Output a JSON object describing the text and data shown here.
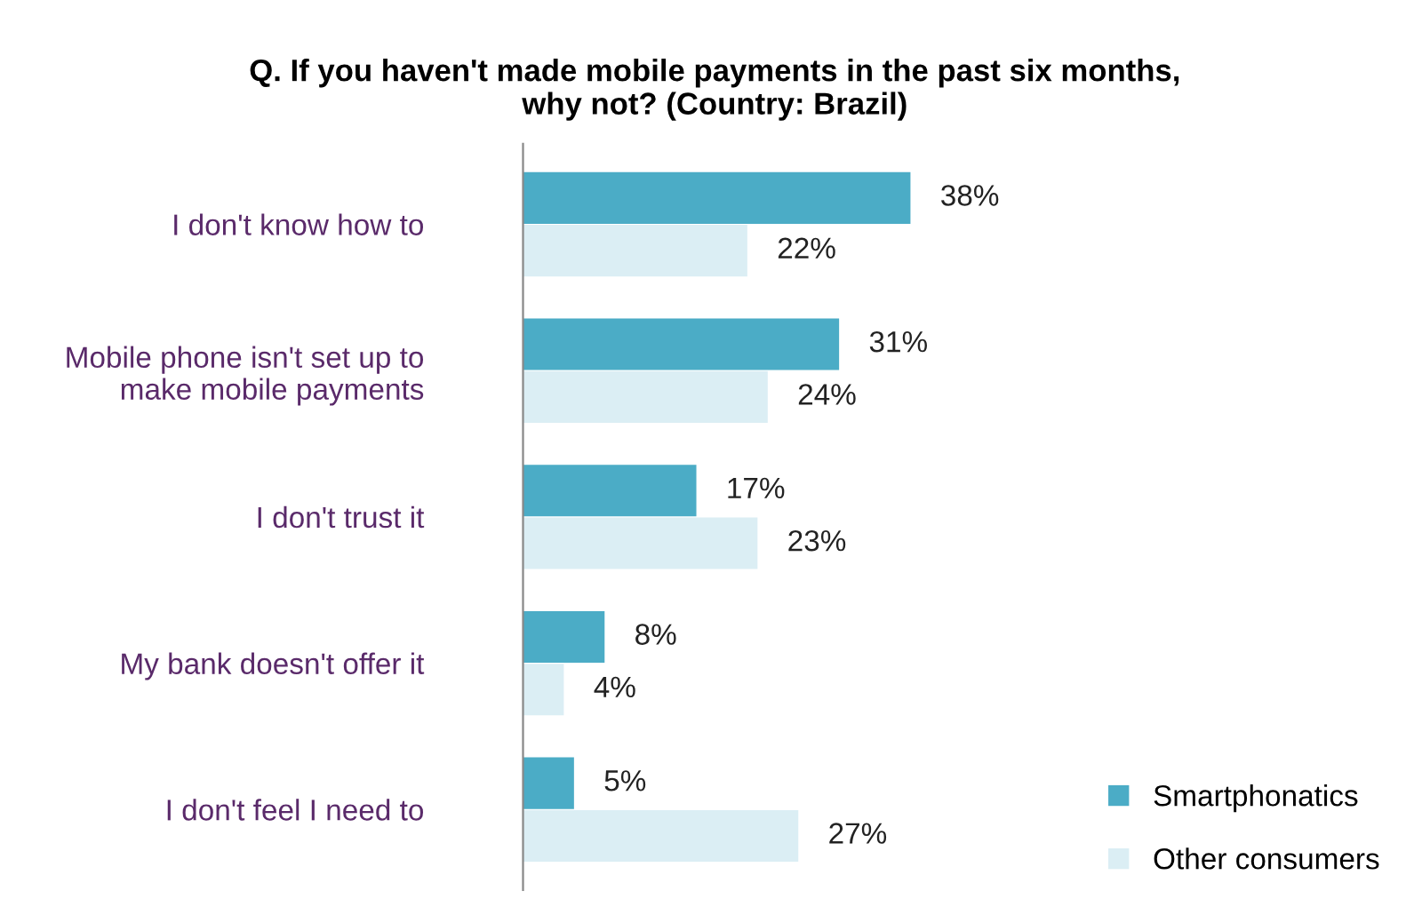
{
  "chart_data": {
    "type": "bar",
    "orientation": "horizontal",
    "title": "Q. If you haven't made mobile payments in the past six months,\nwhy not? (Country: Brazil)",
    "categories": [
      "I don't know how to",
      "Mobile phone isn't set up to\nmake mobile payments",
      "I don't trust it",
      "My bank doesn't offer it",
      "I don't feel I need to"
    ],
    "series": [
      {
        "name": "Smartphonatics",
        "color": "#4bacc6",
        "values": [
          38,
          31,
          17,
          8,
          5
        ],
        "value_labels": [
          "38%",
          "31%",
          "17%",
          "8%",
          "5%"
        ]
      },
      {
        "name": "Other consumers",
        "color": "#dbeef4",
        "values": [
          22,
          24,
          23,
          4,
          27
        ],
        "value_labels": [
          "22%",
          "24%",
          "23%",
          "4%",
          "27%"
        ]
      }
    ],
    "legend": "bottom right",
    "grid": false
  }
}
